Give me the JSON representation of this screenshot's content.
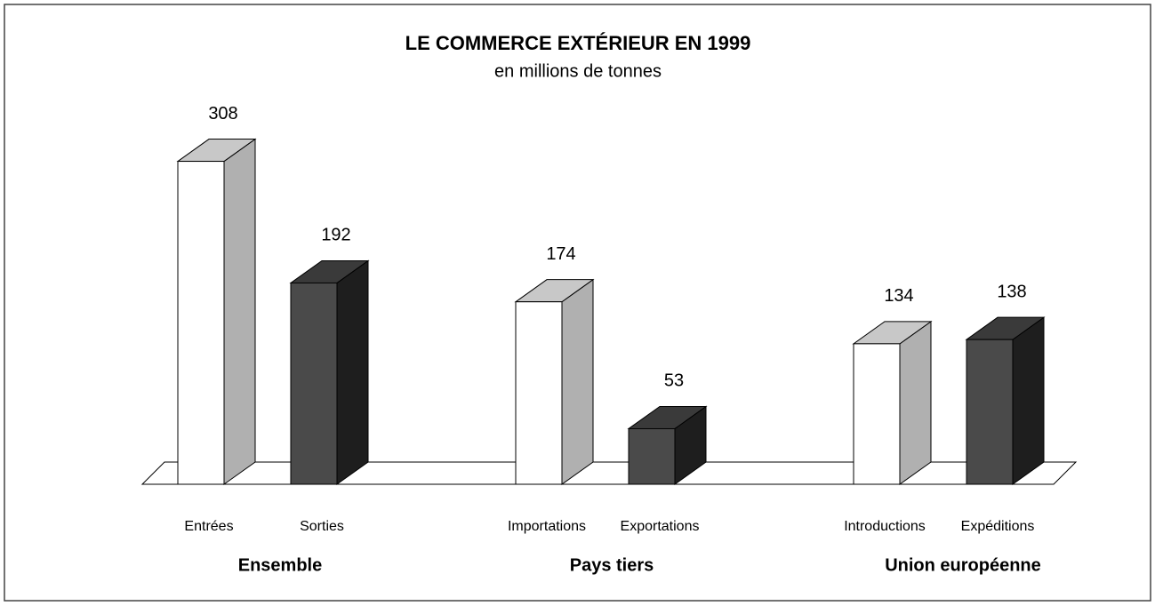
{
  "chart_data": {
    "type": "bar3d",
    "title": "LE COMMERCE EXTÉRIEUR EN 1999",
    "subtitle": "en millions de tonnes",
    "categories": [
      "Entrées",
      "Sorties",
      "Importations",
      "Exportations",
      "Introductions",
      "Expéditions"
    ],
    "values": [
      308,
      192,
      174,
      53,
      134,
      138
    ],
    "colors": [
      "#ffffff",
      "#4a4a4a",
      "#ffffff",
      "#4a4a4a",
      "#ffffff",
      "#4a4a4a"
    ],
    "groups": [
      "Ensemble",
      "Pays tiers",
      "Union européenne"
    ]
  }
}
